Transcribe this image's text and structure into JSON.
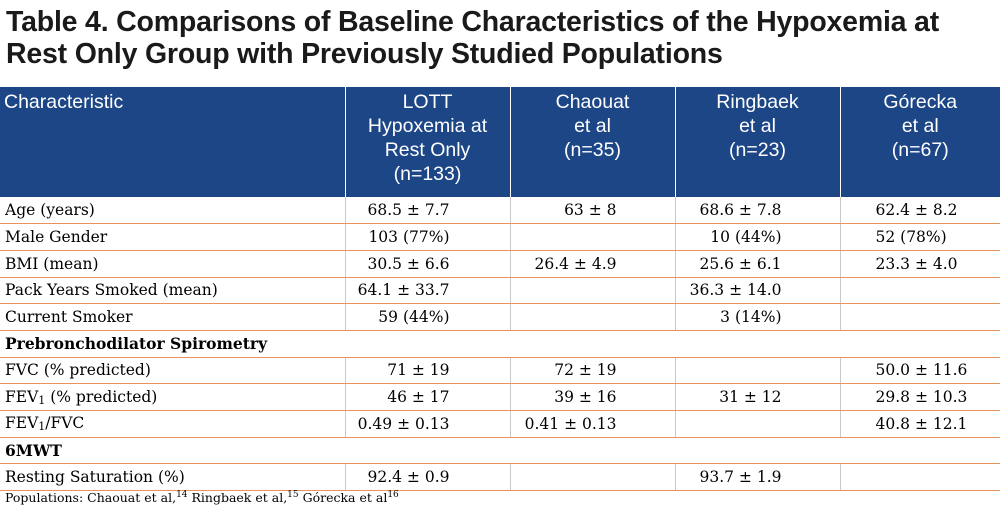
{
  "title": "Table 4. Comparisons of Baseline Characteristics of the Hypoxemia at Rest Only Group with Previously Studied Populations",
  "header": {
    "characteristic": "Characteristic",
    "columns": [
      {
        "lines": [
          "LOTT",
          "Hypoxemia at",
          "Rest Only",
          "(n=133)"
        ]
      },
      {
        "lines": [
          "Chaouat",
          "et al",
          "(n=35)"
        ]
      },
      {
        "lines": [
          "Ringbaek",
          "et al",
          "(n=23)"
        ]
      },
      {
        "lines": [
          "Górecka",
          "et al",
          "(n=67)"
        ]
      }
    ]
  },
  "rows": {
    "age": {
      "label": "Age (years)",
      "v": [
        "68.5 ± 7.7",
        "63 ± 8",
        "68.6 ± 7.8",
        "62.4 ± 8.2"
      ]
    },
    "male": {
      "label": "Male Gender",
      "v": [
        "103 (77%)",
        "",
        "10 (44%)",
        "52 (78%)"
      ]
    },
    "bmi": {
      "label": "BMI (mean)",
      "v": [
        "30.5 ± 6.6",
        "26.4 ± 4.9",
        "25.6 ± 6.1",
        "23.3 ± 4.0"
      ]
    },
    "pack": {
      "label": "Pack Years Smoked (mean)",
      "v": [
        "64.1 ± 33.7",
        "",
        "36.3 ± 14.0",
        ""
      ]
    },
    "smoker": {
      "label": "Current Smoker",
      "v": [
        "59 (44%)",
        "",
        "3 (14%)",
        ""
      ]
    },
    "section_spirometry": "Prebronchodilator Spirometry",
    "fvc": {
      "label": "FVC (% predicted)",
      "v": [
        "71 ± 19",
        "72 ± 19",
        "",
        "50.0 ± 11.6"
      ]
    },
    "fev1": {
      "label_a": "FEV",
      "label_sub": "1",
      "label_b": " (% predicted)",
      "v": [
        "46 ± 17",
        "39 ± 16",
        "31 ± 12",
        "29.8 ± 10.3"
      ]
    },
    "fev1fvc": {
      "label_a": "FEV",
      "label_sub": "1",
      "label_b": "/FVC",
      "v": [
        "0.49 ± 0.13",
        "0.41 ± 0.13",
        "",
        "40.8 ± 12.1"
      ]
    },
    "section_6mwt": "6MWT",
    "sat": {
      "label": "Resting Saturation (%)",
      "v": [
        "92.4 ± 0.9",
        "",
        "93.7 ± 1.9",
        ""
      ]
    }
  },
  "footnote": {
    "prefix": "Populations: ",
    "items": [
      {
        "name": "Chaouat et al,",
        "ref": "14"
      },
      {
        "name": " Ringbaek et al,",
        "ref": "15"
      },
      {
        "name": " Górecka et al",
        "ref": "16"
      }
    ]
  }
}
